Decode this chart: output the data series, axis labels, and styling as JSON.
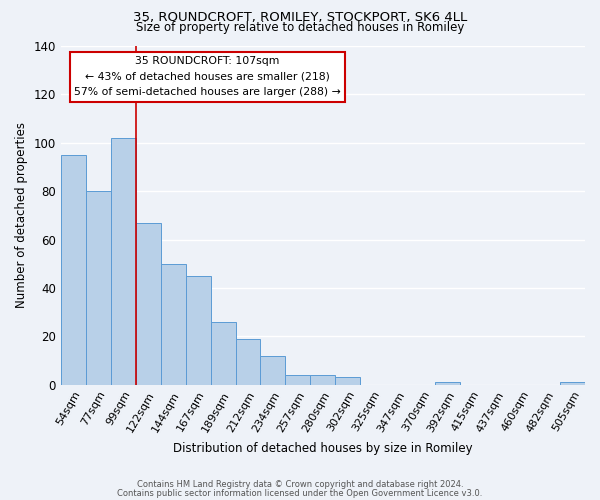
{
  "title1": "35, ROUNDCROFT, ROMILEY, STOCKPORT, SK6 4LL",
  "title2": "Size of property relative to detached houses in Romiley",
  "xlabel": "Distribution of detached houses by size in Romiley",
  "ylabel": "Number of detached properties",
  "bin_labels": [
    "54sqm",
    "77sqm",
    "99sqm",
    "122sqm",
    "144sqm",
    "167sqm",
    "189sqm",
    "212sqm",
    "234sqm",
    "257sqm",
    "280sqm",
    "302sqm",
    "325sqm",
    "347sqm",
    "370sqm",
    "392sqm",
    "415sqm",
    "437sqm",
    "460sqm",
    "482sqm",
    "505sqm"
  ],
  "bar_values": [
    95,
    80,
    102,
    67,
    50,
    45,
    26,
    19,
    12,
    4,
    4,
    3,
    0,
    0,
    0,
    1,
    0,
    0,
    0,
    0,
    1
  ],
  "bar_color": "#b8d0e8",
  "bar_edge_color": "#5b9bd5",
  "ylim": [
    0,
    140
  ],
  "yticks": [
    0,
    20,
    40,
    60,
    80,
    100,
    120,
    140
  ],
  "redline_x": 2.5,
  "annotation_title": "35 ROUNDCROFT: 107sqm",
  "annotation_line1": "← 43% of detached houses are smaller (218)",
  "annotation_line2": "57% of semi-detached houses are larger (288) →",
  "annotation_box_color": "#ffffff",
  "annotation_box_edge": "#cc0000",
  "footer1": "Contains HM Land Registry data © Crown copyright and database right 2024.",
  "footer2": "Contains public sector information licensed under the Open Government Licence v3.0.",
  "background_color": "#eef2f8"
}
